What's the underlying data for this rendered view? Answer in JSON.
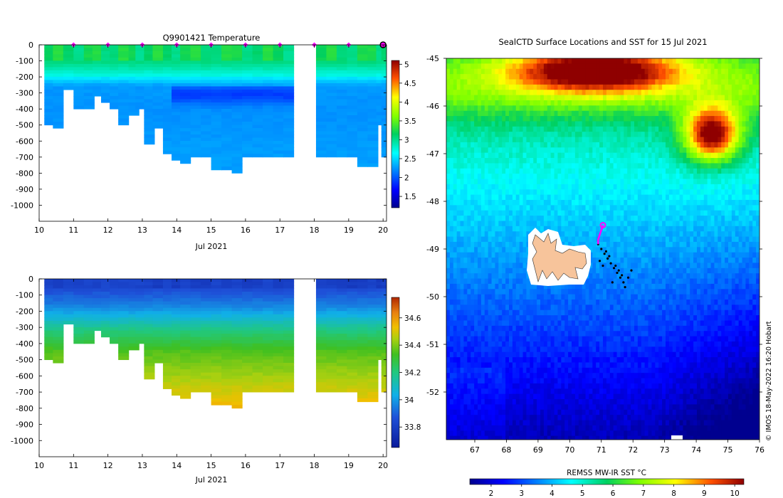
{
  "chart_data": [
    {
      "type": "heatmap",
      "title": "Q9901421  Temperature",
      "xlabel": "Jul 2021",
      "x_ticks": [
        10,
        11,
        12,
        13,
        14,
        15,
        16,
        17,
        18,
        19,
        20
      ],
      "xlim": [
        10,
        20.1
      ],
      "ylim": [
        -1100,
        0
      ],
      "y_ticks": [
        0,
        -100,
        -200,
        -300,
        -400,
        -500,
        -600,
        -700,
        -800,
        -900,
        -1000
      ],
      "colorbar": {
        "ticks": [
          5,
          4.5,
          4,
          3.5,
          3,
          2.5,
          2,
          1.5
        ],
        "range": [
          1.2,
          5.1
        ]
      },
      "dive_markers_day": [
        11,
        12,
        13,
        14,
        15,
        16,
        17,
        18,
        19,
        20
      ],
      "casts": [
        {
          "t": 10.15,
          "depth": 500
        },
        {
          "t": 10.4,
          "depth": 520
        },
        {
          "t": 10.7,
          "depth": 280
        },
        {
          "t": 11.0,
          "depth": 400
        },
        {
          "t": 11.3,
          "depth": 400
        },
        {
          "t": 11.55,
          "depth": 320
        },
        {
          "t": 11.8,
          "depth": 360
        },
        {
          "t": 12.05,
          "depth": 400
        },
        {
          "t": 12.3,
          "depth": 500
        },
        {
          "t": 12.6,
          "depth": 430
        },
        {
          "t": 12.8,
          "depth": 400
        },
        {
          "t": 13.05,
          "depth": 610
        },
        {
          "t": 13.3,
          "depth": 520
        },
        {
          "t": 13.6,
          "depth": 680
        },
        {
          "t": 13.85,
          "depth": 710
        },
        {
          "t": 14.1,
          "depth": 740
        },
        {
          "t": 14.4,
          "depth": 700
        },
        {
          "t": 14.7,
          "depth": 700
        },
        {
          "t": 15.0,
          "depth": 780
        },
        {
          "t": 15.3,
          "depth": 780
        },
        {
          "t": 15.6,
          "depth": 790
        },
        {
          "t": 15.9,
          "depth": 700
        },
        {
          "t": 16.2,
          "depth": 700
        },
        {
          "t": 16.5,
          "depth": 700
        },
        {
          "t": 16.8,
          "depth": 700
        },
        {
          "t": 17.1,
          "depth": 700
        },
        {
          "t": 18.05,
          "depth": 700
        },
        {
          "t": 18.35,
          "depth": 700
        },
        {
          "t": 18.65,
          "depth": 700
        },
        {
          "t": 18.95,
          "depth": 700
        },
        {
          "t": 19.25,
          "depth": 760
        },
        {
          "t": 19.55,
          "depth": 760
        },
        {
          "t": 19.8,
          "depth": 500
        },
        {
          "t": 19.95,
          "depth": 700
        }
      ]
    },
    {
      "type": "heatmap",
      "title": "",
      "xlabel": "Jul 2021",
      "x_ticks": [
        10,
        11,
        12,
        13,
        14,
        15,
        16,
        17,
        18,
        19,
        20
      ],
      "xlim": [
        10,
        20.1
      ],
      "ylim": [
        -1100,
        0
      ],
      "y_ticks": [
        0,
        -100,
        -200,
        -300,
        -400,
        -500,
        -600,
        -700,
        -800,
        -900,
        -1000
      ],
      "colorbar": {
        "ticks": [
          34.6,
          34.4,
          34.2,
          34,
          33.8
        ],
        "range": [
          33.65,
          34.75
        ]
      }
    },
    {
      "type": "heatmap",
      "title": "SealCTD Surface Locations and SST for 15 Jul 2021",
      "xlabel": "",
      "x_ticks": [
        67,
        68,
        69,
        70,
        71,
        72,
        73,
        74,
        75,
        76
      ],
      "y_ticks": [
        -45,
        -46,
        -47,
        -48,
        -49,
        -50,
        -51,
        -52
      ],
      "xlim": [
        66.1,
        76.0
      ],
      "ylim": [
        -53.0,
        -45.0
      ],
      "colorbar": {
        "label": "REMSS MW-IR SST °C",
        "ticks": [
          2,
          3,
          4,
          5,
          6,
          7,
          8,
          9,
          10
        ],
        "range": [
          1.3,
          10.3
        ]
      },
      "seal_track": [
        {
          "lon": 71.05,
          "lat": -48.5
        },
        {
          "lon": 71.0,
          "lat": -48.6
        },
        {
          "lon": 70.95,
          "lat": -48.7
        },
        {
          "lon": 70.9,
          "lat": -48.8
        },
        {
          "lon": 70.9,
          "lat": -48.9
        }
      ],
      "surface_locations": [
        [
          70.9,
          -48.9
        ],
        [
          71.0,
          -49.0
        ],
        [
          71.1,
          -49.1
        ],
        [
          71.2,
          -49.2
        ],
        [
          71.3,
          -49.3
        ],
        [
          71.4,
          -49.4
        ],
        [
          71.5,
          -49.5
        ],
        [
          71.6,
          -49.6
        ],
        [
          71.7,
          -49.7
        ],
        [
          71.75,
          -49.8
        ],
        [
          71.65,
          -49.55
        ],
        [
          71.45,
          -49.35
        ],
        [
          71.25,
          -49.15
        ],
        [
          71.15,
          -49.05
        ],
        [
          71.55,
          -49.45
        ],
        [
          71.85,
          -49.6
        ],
        [
          71.95,
          -49.45
        ],
        [
          71.35,
          -49.7
        ],
        [
          71.05,
          -49.35
        ],
        [
          70.95,
          -49.25
        ]
      ]
    }
  ],
  "colors": {
    "marker": "#ff00ff",
    "island": "#f7c49b",
    "axis": "#000000"
  },
  "credit": "© IMOS 18-May-2022 16:20 Hobart"
}
